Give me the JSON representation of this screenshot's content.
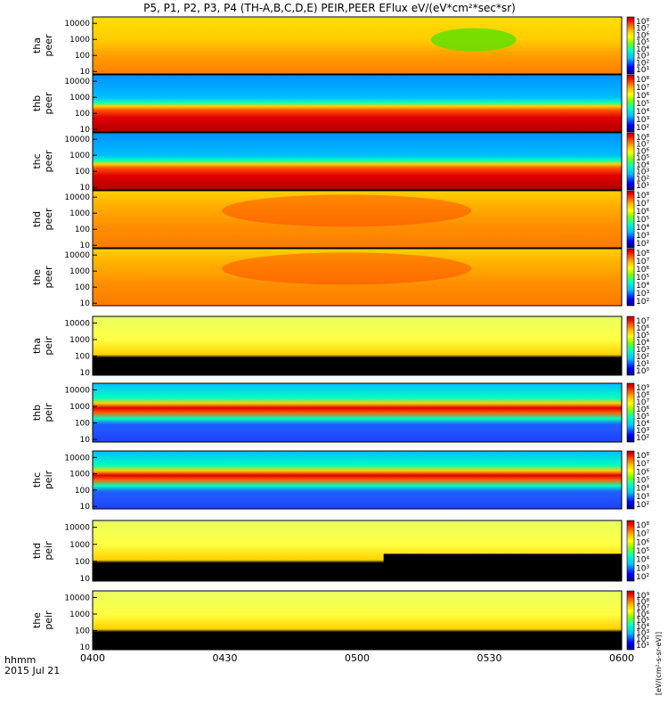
{
  "figure": {
    "title": "P5, P1, P2, P3, P4 (TH-A,B,C,D,E) PEIR,PEER EFlux eV/(eV*cm²*sec*sr)",
    "xaxis_label": "hhmm",
    "date_label": "2015 Jul 21",
    "xticks": [
      "0400",
      "0430",
      "0500",
      "0530",
      "0600"
    ],
    "yticks": [
      "10",
      "100",
      "1000",
      "10000"
    ],
    "cbar_unit": "[eV/(cm²-s-sr-eV)]"
  },
  "colors": {
    "background": "#ffffff",
    "colormap": [
      "#000080",
      "#0000ff",
      "#00bfff",
      "#00ffbf",
      "#7fff00",
      "#ffff00",
      "#ffbf00",
      "#ff5a00",
      "#e80000",
      "#b00000"
    ]
  },
  "chart_data": {
    "type": "heatmap",
    "time_range": [
      "0400",
      "0600"
    ],
    "energy_range_eV": [
      7,
      25000
    ],
    "y_scale": "log",
    "panels": [
      {
        "probe": "tha",
        "species": "peer",
        "label": [
          "tha",
          "peer"
        ],
        "cbar_ticks": [
          "10⁸",
          "10⁷",
          "10⁶",
          "10⁵",
          "10⁴",
          "10³",
          "10²",
          "10¹"
        ],
        "style": "warm_green_blob"
      },
      {
        "probe": "thb",
        "species": "peer",
        "label": [
          "thb",
          "peer"
        ],
        "cbar_ticks": [
          "10⁸",
          "10⁷",
          "10⁶",
          "10⁵",
          "10⁴",
          "10³",
          "10²"
        ],
        "style": "banded_electrons"
      },
      {
        "probe": "thc",
        "species": "peer",
        "label": [
          "thc",
          "peer"
        ],
        "cbar_ticks": [
          "10⁸",
          "10⁷",
          "10⁶",
          "10⁵",
          "10⁴",
          "10³",
          "10²",
          "10¹"
        ],
        "style": "banded_electrons"
      },
      {
        "probe": "thd",
        "species": "peer",
        "label": [
          "thd",
          "peer"
        ],
        "cbar_ticks": [
          "10⁸",
          "10⁷",
          "10⁶",
          "10⁵",
          "10⁴",
          "10³",
          "10²"
        ],
        "style": "warm"
      },
      {
        "probe": "the",
        "species": "peer",
        "label": [
          "the",
          "peer"
        ],
        "cbar_ticks": [
          "10⁸",
          "10⁷",
          "10⁶",
          "10⁵",
          "10⁴",
          "10³",
          "10²"
        ],
        "style": "warm"
      },
      {
        "probe": "tha",
        "species": "peir",
        "label": [
          "tha",
          "peir"
        ],
        "cbar_ticks": [
          "10⁷",
          "10⁶",
          "10⁵",
          "10⁴",
          "10³",
          "10²",
          "10¹",
          "10⁰"
        ],
        "style": "ion_black_low"
      },
      {
        "probe": "thb",
        "species": "peir",
        "label": [
          "thb",
          "peir"
        ],
        "cbar_ticks": [
          "10⁹",
          "10⁸",
          "10⁷",
          "10⁶",
          "10⁵",
          "10⁴",
          "10³",
          "10²"
        ],
        "style": "ion_band"
      },
      {
        "probe": "thc",
        "species": "peir",
        "label": [
          "thc",
          "peir"
        ],
        "cbar_ticks": [
          "10⁸",
          "10⁷",
          "10⁶",
          "10⁵",
          "10⁴",
          "10³",
          "10²"
        ],
        "style": "ion_band"
      },
      {
        "probe": "thd",
        "species": "peir",
        "label": [
          "thd",
          "peir"
        ],
        "cbar_ticks": [
          "10⁸",
          "10⁷",
          "10⁶",
          "10⁵",
          "10⁴",
          "10³",
          "10²"
        ],
        "style": "ion_step"
      },
      {
        "probe": "the",
        "species": "peir",
        "label": [
          "the",
          "peir"
        ],
        "cbar_ticks": [
          "10⁹",
          "10⁸",
          "10⁷",
          "10⁶",
          "10⁵",
          "10⁴",
          "10³",
          "10²",
          "10¹"
        ],
        "style": "ion_black_low2"
      }
    ]
  }
}
